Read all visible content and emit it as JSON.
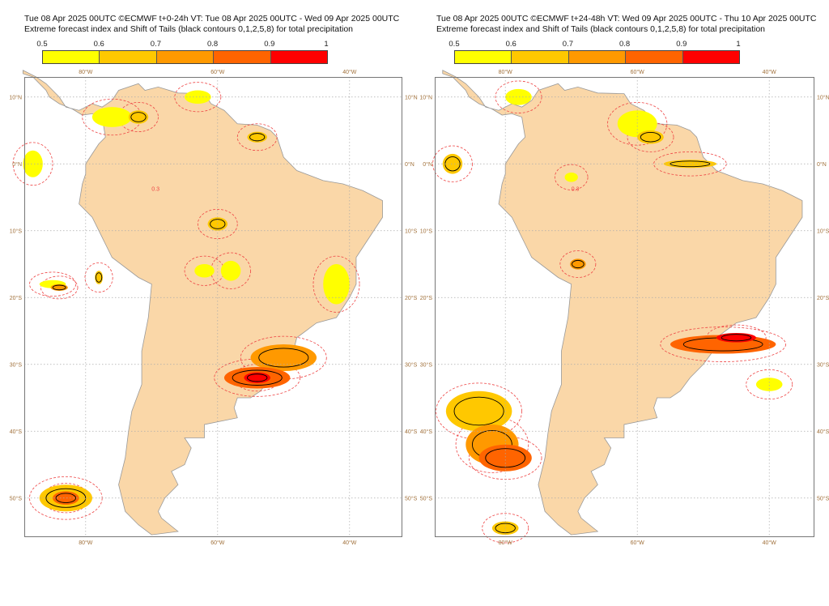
{
  "panels": [
    {
      "title": "Tue 08 Apr 2025 00UTC ©ECMWF t+0-24h  VT: Tue 08 Apr 2025 00UTC - Wed 09 Apr 2025 00UTC",
      "subtitle": "Extreme forecast index and Shift of Tails (black contours 0,1,2,5,8) for total precipitation"
    },
    {
      "title": "Tue 08 Apr 2025 00UTC ©ECMWF t+24-48h  VT: Wed 09 Apr 2025 00UTC - Thu 10 Apr 2025 00UTC",
      "subtitle": "Extreme forecast index and Shift of Tails (black contours 0,1,2,5,8) for total precipitation"
    }
  ],
  "colorbar": {
    "levels": [
      "0.5",
      "0.6",
      "0.7",
      "0.8",
      "0.9",
      "1"
    ],
    "colors": [
      "#ffff00",
      "#ffc800",
      "#ff9900",
      "#ff6400",
      "#ff0000"
    ]
  },
  "map": {
    "lon_labels": [
      "80°W",
      "60°W",
      "40°W"
    ],
    "lat_labels_left": [
      "10°N",
      "0°N",
      "10°S",
      "20°S",
      "30°S",
      "40°S",
      "50°S"
    ],
    "lat_labels_right": [
      "10°N",
      "0°N",
      "10°S",
      "20°S",
      "30°S",
      "40°S",
      "50°S"
    ],
    "contour_label": "0.3",
    "land_color": "#fad7a8",
    "contour_color": "#ee4444"
  }
}
